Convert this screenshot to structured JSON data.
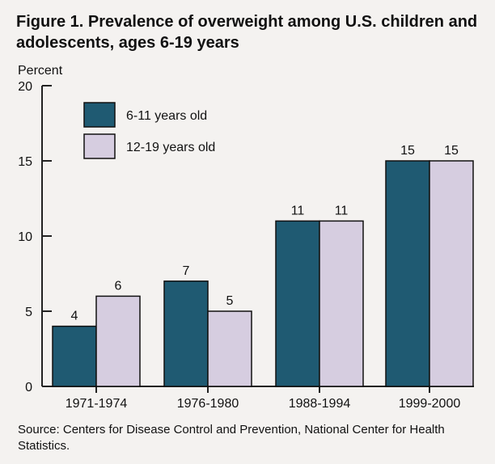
{
  "title": "Figure 1. Prevalence of overweight among U.S. children and adolescents, ages 6-19 years",
  "source": "Source: Centers for Disease Control and Prevention, National Center for Health Statistics.",
  "colors": {
    "series_1": "#1f5a72",
    "series_2": "#d6cde0",
    "axis": "#222222"
  },
  "chart_data": {
    "type": "bar",
    "title": "Figure 1. Prevalence of overweight among U.S. children and adolescents, ages 6-19 years",
    "xlabel": "",
    "ylabel": "Percent",
    "ylim": [
      0,
      20
    ],
    "yticks": [
      "0",
      "5",
      "10",
      "15",
      "20"
    ],
    "categories": [
      "1971-1974",
      "1976-1980",
      "1988-1994",
      "1999-2000"
    ],
    "series": [
      {
        "name": "6-11 years old",
        "values": [
          4,
          7,
          11,
          15
        ],
        "labels": [
          "4",
          "7",
          "11",
          "15"
        ]
      },
      {
        "name": "12-19 years old",
        "values": [
          6,
          5,
          11,
          15
        ],
        "labels": [
          "6",
          "5",
          "11",
          "15"
        ]
      }
    ],
    "legend_position": "top-left",
    "grid": false
  }
}
